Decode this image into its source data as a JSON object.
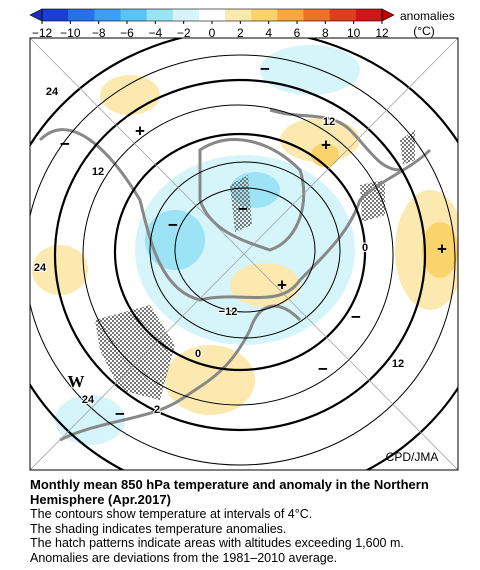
{
  "colorbar": {
    "label": "anomalies",
    "unit": "(°C)",
    "ticks": [
      {
        "value": -12,
        "label": "−12"
      },
      {
        "value": -10,
        "label": "−10"
      },
      {
        "value": -8,
        "label": "−8"
      },
      {
        "value": -6,
        "label": "−6"
      },
      {
        "value": -4,
        "label": "−4"
      },
      {
        "value": -2,
        "label": "−2"
      },
      0,
      2,
      4,
      6,
      8,
      10,
      12
    ],
    "colors": [
      "#1a3fd8",
      "#2a6ef0",
      "#3d9cf5",
      "#5cc3f5",
      "#9be3f5",
      "#d6f5fa",
      "#ffffff",
      "#fbe9b0",
      "#fbd36b",
      "#f7a93a",
      "#f0702a",
      "#e33a22",
      "#d01616"
    ],
    "under_color": "#1a2fc0",
    "over_color": "#c80000"
  },
  "map": {
    "credit": "CPD/JMA",
    "labels": [
      "24",
      "12",
      "12",
      "0",
      "24",
      "−12",
      "0",
      "12",
      "24",
      "2",
      "W",
      "+",
      "+",
      "+",
      "+",
      "−",
      "−",
      "−",
      "−",
      "−",
      "−",
      "−"
    ]
  },
  "caption": {
    "title": "Monthly mean 850 hPa temperature and anomaly in the Northern Hemisphere (Apr.2017)",
    "lines": [
      "The contours show temperature at intervals of 4°C.",
      "The shading indicates temperature anomalies.",
      "The hatch patterns indicate areas with altitudes exceeding 1,600 m.",
      "Anomalies are deviations from the 1981–2010 average."
    ]
  }
}
